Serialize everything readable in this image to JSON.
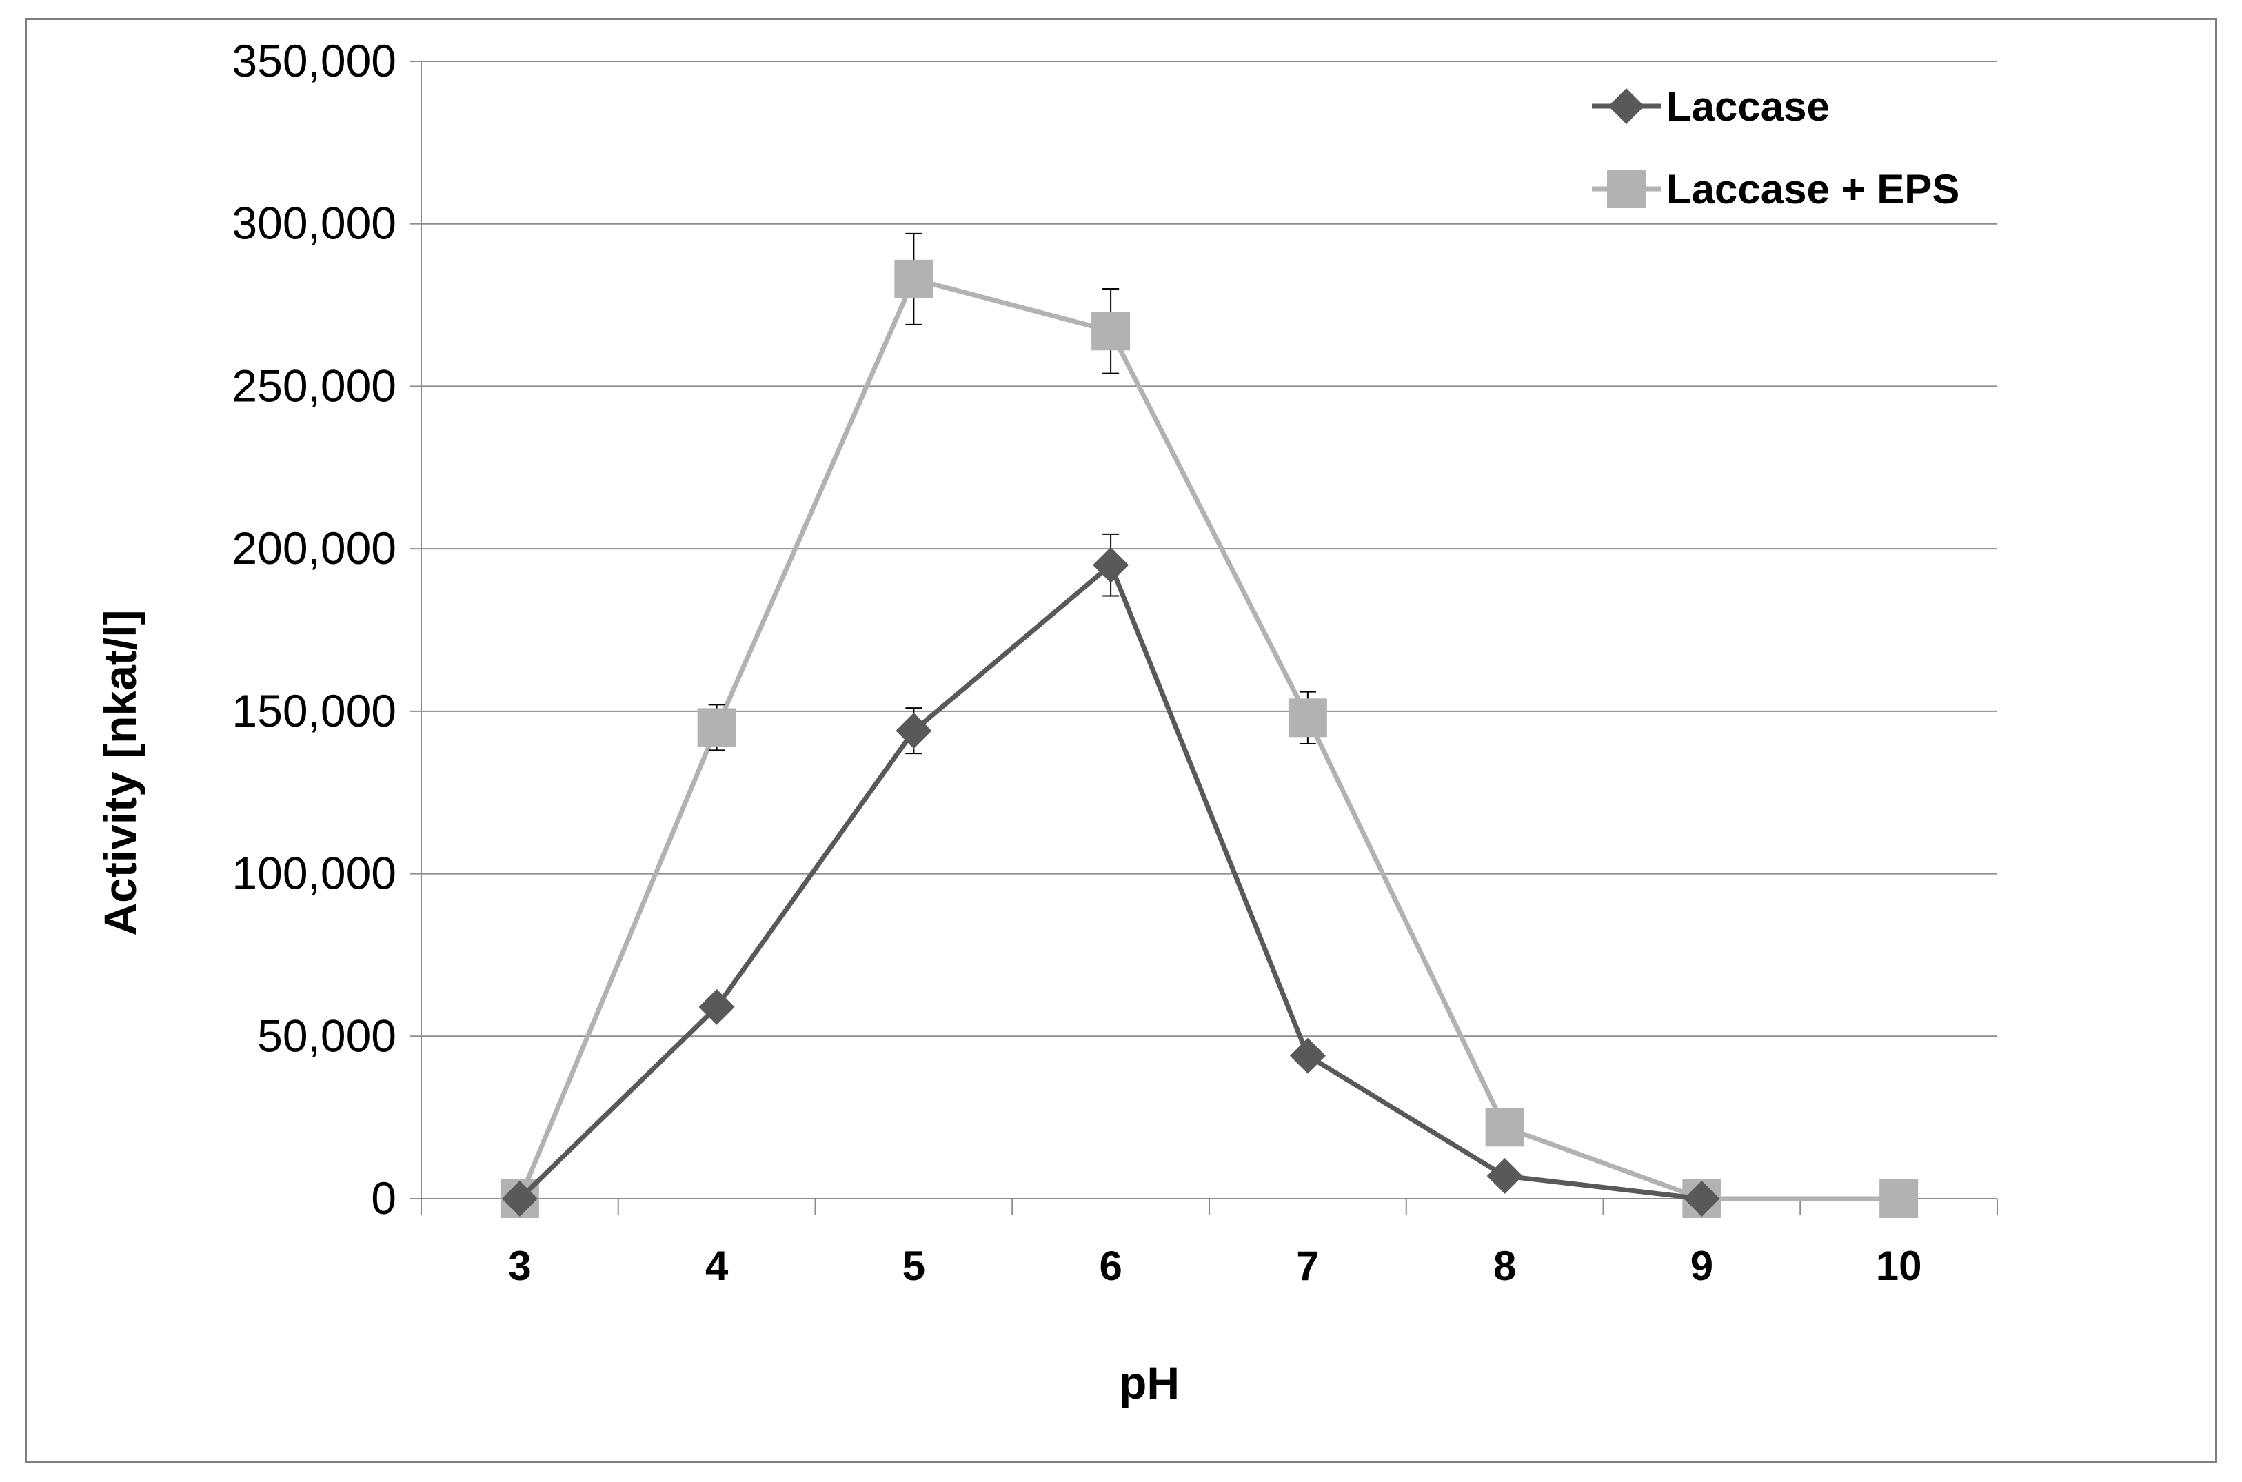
{
  "chart_data": {
    "type": "line",
    "xlabel": "pH",
    "ylabel": "Activity [nkat/l]",
    "categories": [
      "3",
      "4",
      "5",
      "6",
      "7",
      "8",
      "9",
      "10"
    ],
    "y_tick_labels": [
      "0",
      "50,000",
      "100,000",
      "150,000",
      "200,000",
      "250,000",
      "300,000",
      "350,000"
    ],
    "ylim": [
      0,
      350000
    ],
    "y_ticks": [
      0,
      50000,
      100000,
      150000,
      200000,
      250000,
      300000,
      350000
    ],
    "grid": "horizontal",
    "legend_position": "top-right",
    "series": [
      {
        "name": "Laccase",
        "marker": "diamond",
        "color": "#595959",
        "values": [
          0,
          59000,
          144000,
          195000,
          44000,
          7000,
          0,
          null
        ],
        "errors": [
          0,
          0,
          7000,
          9500,
          0,
          0,
          0,
          null
        ]
      },
      {
        "name": "Laccase + EPS",
        "marker": "square",
        "color": "#b2b2b2",
        "values": [
          0,
          145000,
          283000,
          267000,
          148000,
          22000,
          0,
          0
        ],
        "errors": [
          0,
          7000,
          14000,
          13000,
          8000,
          0,
          0,
          0
        ]
      }
    ]
  }
}
